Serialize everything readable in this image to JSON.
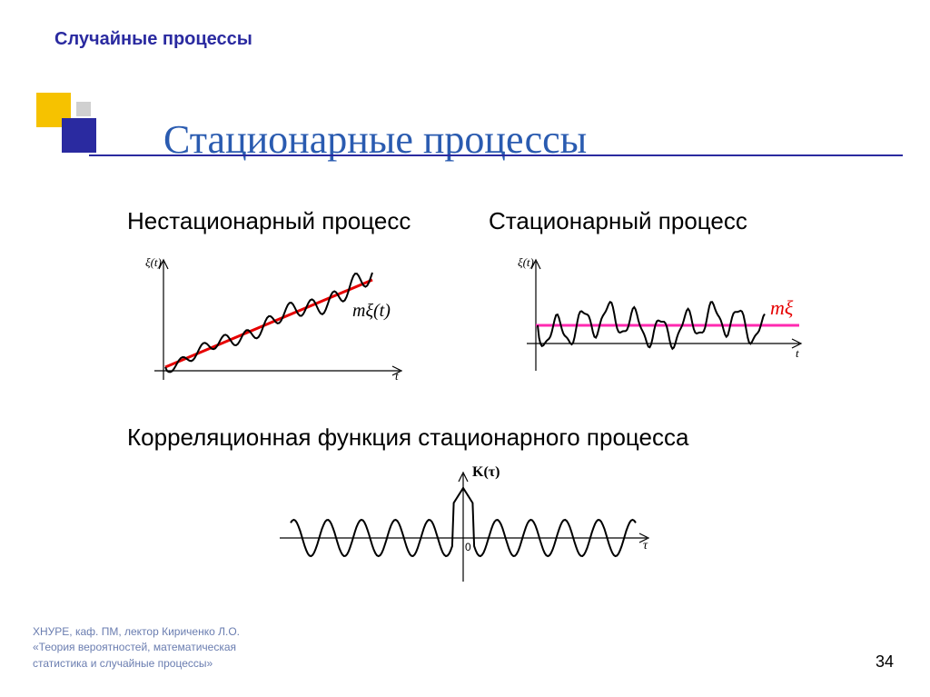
{
  "slide": {
    "top_label": "Случайные процессы",
    "title": "Стационарные процессы",
    "title_color": "#2a5bb0",
    "title_line_color": "#2a2aa0",
    "subtitle_left": "Нестационарный процесс",
    "subtitle_right": "Стационарный процесс",
    "corr_title": "Корреляционная функция стационарного процесса",
    "page_number": "34"
  },
  "deco": {
    "sq1_color": "#f6c200",
    "sq2_color": "#2a2aa0",
    "sq3_color": "#d0d0d0"
  },
  "chart_left": {
    "y_axis_label": "ξ(t)",
    "x_axis_label": "t",
    "mean_label": "mξ(t)",
    "mean_color": "#e60000",
    "signal_color": "#000000",
    "axis_color": "#000000"
  },
  "chart_right": {
    "y_axis_label": "ξ(t)",
    "x_axis_label": "t",
    "mean_label": "mξ",
    "mean_color": "#ff2ab0",
    "signal_color": "#000000",
    "axis_color": "#000000"
  },
  "chart_corr": {
    "y_axis_label": "K(τ)",
    "x_axis_label": "τ",
    "zero_label": "0",
    "signal_color": "#000000",
    "axis_color": "#000000"
  },
  "footer": {
    "line1": "ХНУРЕ, каф. ПМ, лектор Кириченко Л.О.",
    "line2": "«Теория вероятностей, математическая",
    "line3": "статистика и случайные процессы»",
    "color": "#6a7db0"
  }
}
